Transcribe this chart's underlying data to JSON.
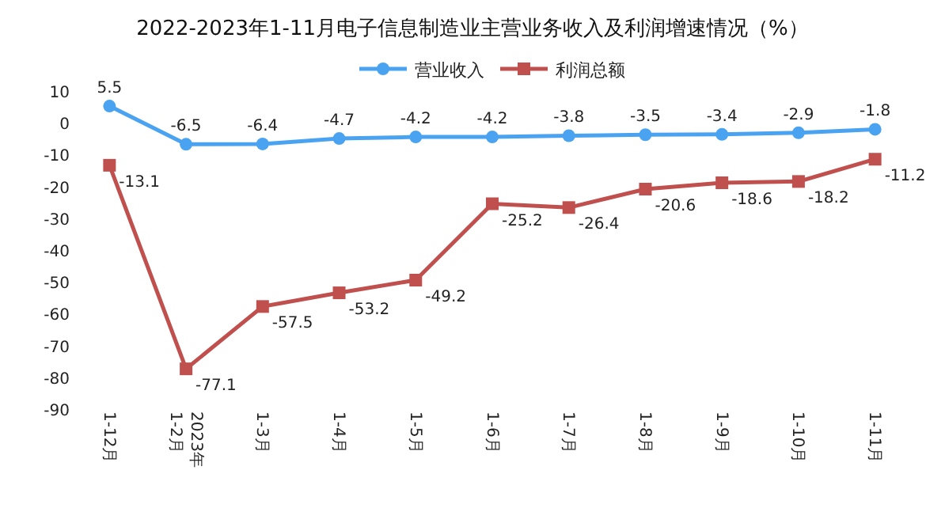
{
  "chart_data": {
    "type": "line",
    "title": "2022-2023年1-11月电子信息制造业主营业务收入及利润增速情况（%）",
    "categories": [
      "1-12月",
      "2023年\n1-2月",
      "1-3月",
      "1-4月",
      "1-5月",
      "1-6月",
      "1-7月",
      "1-8月",
      "1-9月",
      "1-10月",
      "1-11月"
    ],
    "series": [
      {
        "name": "营业收入",
        "color": "#4aa3f0",
        "marker": "circle",
        "values": [
          5.5,
          -6.5,
          -6.4,
          -4.7,
          -4.2,
          -4.2,
          -3.8,
          -3.5,
          -3.4,
          -2.9,
          -1.8
        ]
      },
      {
        "name": "利润总额",
        "color": "#c0504d",
        "marker": "square",
        "values": [
          -13.1,
          -77.1,
          -57.5,
          -53.2,
          -49.2,
          -25.2,
          -26.4,
          -20.6,
          -18.6,
          -18.2,
          -11.2
        ]
      }
    ],
    "ylim": [
      -90,
      10
    ],
    "yticks": [
      10,
      0,
      -10,
      -20,
      -30,
      -40,
      -50,
      -60,
      -70,
      -80,
      -90
    ],
    "legend": "top",
    "data_labels": true
  }
}
